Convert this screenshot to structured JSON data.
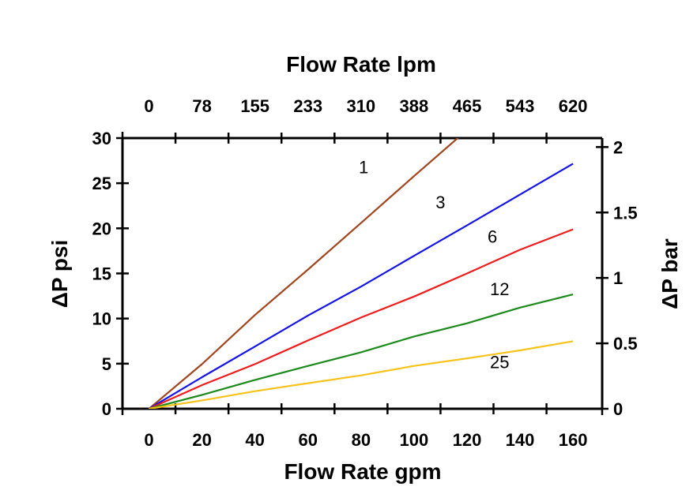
{
  "chart_data": {
    "type": "line",
    "title": "",
    "xlabel": "Flow Rate gpm",
    "x2label": "Flow Rate lpm",
    "ylabel": "ΔP psi",
    "y2label": "ΔP bar",
    "xlim": [
      -10,
      171
    ],
    "ylim": [
      0,
      30
    ],
    "y2lim": [
      0,
      2.07
    ],
    "grid": false,
    "x_ticks": [
      "0",
      "20",
      "40",
      "60",
      "80",
      "100",
      "120",
      "140",
      "160"
    ],
    "x2_ticks": [
      "0",
      "78",
      "155",
      "233",
      "310",
      "388",
      "465",
      "543",
      "620"
    ],
    "y_ticks": [
      "0",
      "5",
      "10",
      "15",
      "20",
      "25",
      "30"
    ],
    "y2_ticks": [
      "0",
      "0.5",
      "1",
      "1.5",
      "2"
    ],
    "x": [
      0,
      20,
      40,
      60,
      80,
      100,
      120,
      140,
      160
    ],
    "series": [
      {
        "label": "1",
        "color": "#a0461e",
        "values": [
          0,
          4.95,
          10.4,
          15.44,
          20.59,
          25.78,
          30.9,
          null,
          null
        ],
        "label_at": [
          81,
          26.8
        ]
      },
      {
        "label": "3",
        "color": "#1414e6",
        "values": [
          0,
          3.5,
          6.9,
          10.34,
          13.54,
          16.95,
          20.33,
          23.74,
          27.17
        ],
        "label_at": [
          110,
          22.9
        ]
      },
      {
        "label": "6",
        "color": "#ee1c1c",
        "values": [
          0,
          2.62,
          4.95,
          7.57,
          10.11,
          12.44,
          15.0,
          17.62,
          19.89
        ],
        "label_at": [
          129.6,
          19.1
        ]
      },
      {
        "label": "12",
        "color": "#1b8a1b",
        "values": [
          0,
          1.54,
          3.2,
          4.75,
          6.26,
          8.01,
          9.47,
          11.21,
          12.67
        ],
        "label_at": [
          132.3,
          13.3
        ]
      },
      {
        "label": "25",
        "color": "#f7c31a",
        "values": [
          0,
          0.93,
          1.95,
          2.83,
          3.7,
          4.75,
          5.59,
          6.47,
          7.49
        ],
        "label_at": [
          132.3,
          5.2
        ]
      }
    ]
  }
}
